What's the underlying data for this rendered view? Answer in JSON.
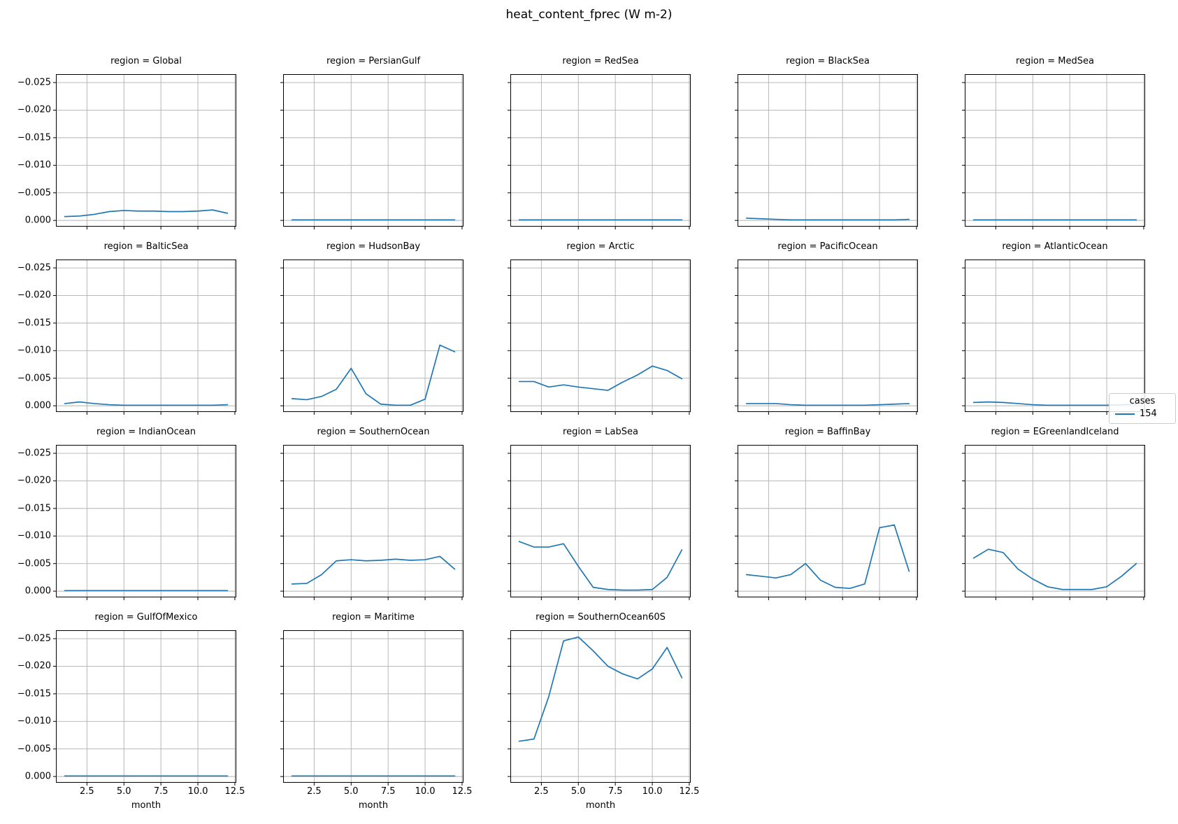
{
  "figure": {
    "title": "heat_content_fprec (W m-2)"
  },
  "chart_data": {
    "type": "line",
    "title": "heat_content_fprec (W m-2)",
    "xlabel": "month",
    "ylabel": "",
    "x": [
      1,
      2,
      3,
      4,
      5,
      6,
      7,
      8,
      9,
      10,
      11,
      12
    ],
    "xlim": [
      0.45,
      12.55
    ],
    "x_ticks": [
      2.5,
      5.0,
      7.5,
      10.0,
      12.5
    ],
    "x_tick_labels": [
      "2.5",
      "5.0",
      "7.5",
      "10.0",
      "12.5"
    ],
    "ylim": [
      -0.0264,
      0.001
    ],
    "y_axis_inverted": true,
    "y_ticks": [
      -0.025,
      -0.02,
      -0.015,
      -0.01,
      -0.005,
      0.0
    ],
    "y_tick_labels": [
      "−0.025",
      "−0.020",
      "−0.015",
      "−0.010",
      "−0.005",
      "0.000"
    ],
    "grid": true,
    "grid_color": "#b0b0b0",
    "line_color": "#1f77b4",
    "facet_title_prefix": "region = ",
    "legend": {
      "title": "cases",
      "entries": [
        {
          "label": "154",
          "color": "#1f77b4"
        }
      ],
      "position": "right-margin"
    },
    "facets": [
      {
        "region": "Global",
        "values": [
          -0.0007,
          -0.0008,
          -0.0011,
          -0.0016,
          -0.0018,
          -0.0017,
          -0.0017,
          -0.0016,
          -0.0016,
          -0.0017,
          -0.0019,
          -0.0013
        ]
      },
      {
        "region": "PersianGulf",
        "values": [
          -0.0001,
          -0.0001,
          -0.0001,
          -0.0001,
          -0.0001,
          -0.0001,
          -0.0001,
          -0.0001,
          -0.0001,
          -0.0001,
          -0.0001,
          -0.0001
        ]
      },
      {
        "region": "RedSea",
        "values": [
          -0.0001,
          -0.0001,
          -0.0001,
          -0.0001,
          -0.0001,
          -0.0001,
          -0.0001,
          -0.0001,
          -0.0001,
          -0.0001,
          -0.0001,
          -0.0001
        ]
      },
      {
        "region": "BlackSea",
        "values": [
          -0.0004,
          -0.0003,
          -0.0002,
          -0.0001,
          -0.0001,
          -0.0001,
          -0.0001,
          -0.0001,
          -0.0001,
          -0.0001,
          -0.0001,
          -0.0002
        ]
      },
      {
        "region": "MedSea",
        "values": [
          -0.0001,
          -0.0001,
          -0.0001,
          -0.0001,
          -0.0001,
          -0.0001,
          -0.0001,
          -0.0001,
          -0.0001,
          -0.0001,
          -0.0001,
          -0.0001
        ]
      },
      {
        "region": "BalticSea",
        "values": [
          -0.0004,
          -0.0007,
          -0.0004,
          -0.0002,
          -0.0001,
          -0.0001,
          -0.0001,
          -0.0001,
          -0.0001,
          -0.0001,
          -0.0001,
          -0.0002
        ]
      },
      {
        "region": "HudsonBay",
        "values": [
          -0.0013,
          -0.0011,
          -0.0017,
          -0.003,
          -0.0068,
          -0.0022,
          -0.0003,
          -0.0001,
          -0.0001,
          -0.0012,
          -0.011,
          -0.0098
        ]
      },
      {
        "region": "Arctic",
        "values": [
          -0.0044,
          -0.0044,
          -0.0034,
          -0.0038,
          -0.0034,
          -0.0031,
          -0.0028,
          -0.0043,
          -0.0056,
          -0.0072,
          -0.0064,
          -0.0049
        ]
      },
      {
        "region": "PacificOcean",
        "values": [
          -0.0004,
          -0.0004,
          -0.0004,
          -0.0002,
          -0.0001,
          -0.0001,
          -0.0001,
          -0.0001,
          -0.0001,
          -0.0002,
          -0.0003,
          -0.0004
        ]
      },
      {
        "region": "AtlanticOcean",
        "values": [
          -0.0006,
          -0.0007,
          -0.0006,
          -0.0004,
          -0.0002,
          -0.0001,
          -0.0001,
          -0.0001,
          -0.0001,
          -0.0001,
          -0.0002,
          -0.0003
        ]
      },
      {
        "region": "IndianOcean",
        "values": [
          -0.0001,
          -0.0001,
          -0.0001,
          -0.0001,
          -0.0001,
          -0.0001,
          -0.0001,
          -0.0001,
          -0.0001,
          -0.0001,
          -0.0001,
          -0.0001
        ]
      },
      {
        "region": "SouthernOcean",
        "values": [
          -0.0013,
          -0.0014,
          -0.003,
          -0.0055,
          -0.0057,
          -0.0055,
          -0.0056,
          -0.0058,
          -0.0056,
          -0.0057,
          -0.0063,
          -0.004
        ]
      },
      {
        "region": "LabSea",
        "values": [
          -0.009,
          -0.008,
          -0.008,
          -0.0086,
          -0.0045,
          -0.0007,
          -0.0003,
          -0.0002,
          -0.0002,
          -0.0003,
          -0.0025,
          -0.0075
        ]
      },
      {
        "region": "BaffinBay",
        "values": [
          -0.003,
          -0.0027,
          -0.0024,
          -0.003,
          -0.005,
          -0.002,
          -0.0007,
          -0.0005,
          -0.0013,
          -0.0115,
          -0.012,
          -0.0036
        ]
      },
      {
        "region": "EGreenlandIceland",
        "values": [
          -0.006,
          -0.0076,
          -0.007,
          -0.004,
          -0.0022,
          -0.0008,
          -0.0003,
          -0.0003,
          -0.0003,
          -0.0008,
          -0.0027,
          -0.005
        ]
      },
      {
        "region": "GulfOfMexico",
        "values": [
          -0.0001,
          -0.0001,
          -0.0001,
          -0.0001,
          -0.0001,
          -0.0001,
          -0.0001,
          -0.0001,
          -0.0001,
          -0.0001,
          -0.0001,
          -0.0001
        ]
      },
      {
        "region": "Maritime",
        "values": [
          -0.0001,
          -0.0001,
          -0.0001,
          -0.0001,
          -0.0001,
          -0.0001,
          -0.0001,
          -0.0001,
          -0.0001,
          -0.0001,
          -0.0001,
          -0.0001
        ]
      },
      {
        "region": "SouthernOcean60S",
        "values": [
          -0.0064,
          -0.0068,
          -0.0145,
          -0.0246,
          -0.0253,
          -0.0228,
          -0.02,
          -0.0186,
          -0.0177,
          -0.0195,
          -0.0234,
          -0.0179
        ]
      }
    ]
  }
}
